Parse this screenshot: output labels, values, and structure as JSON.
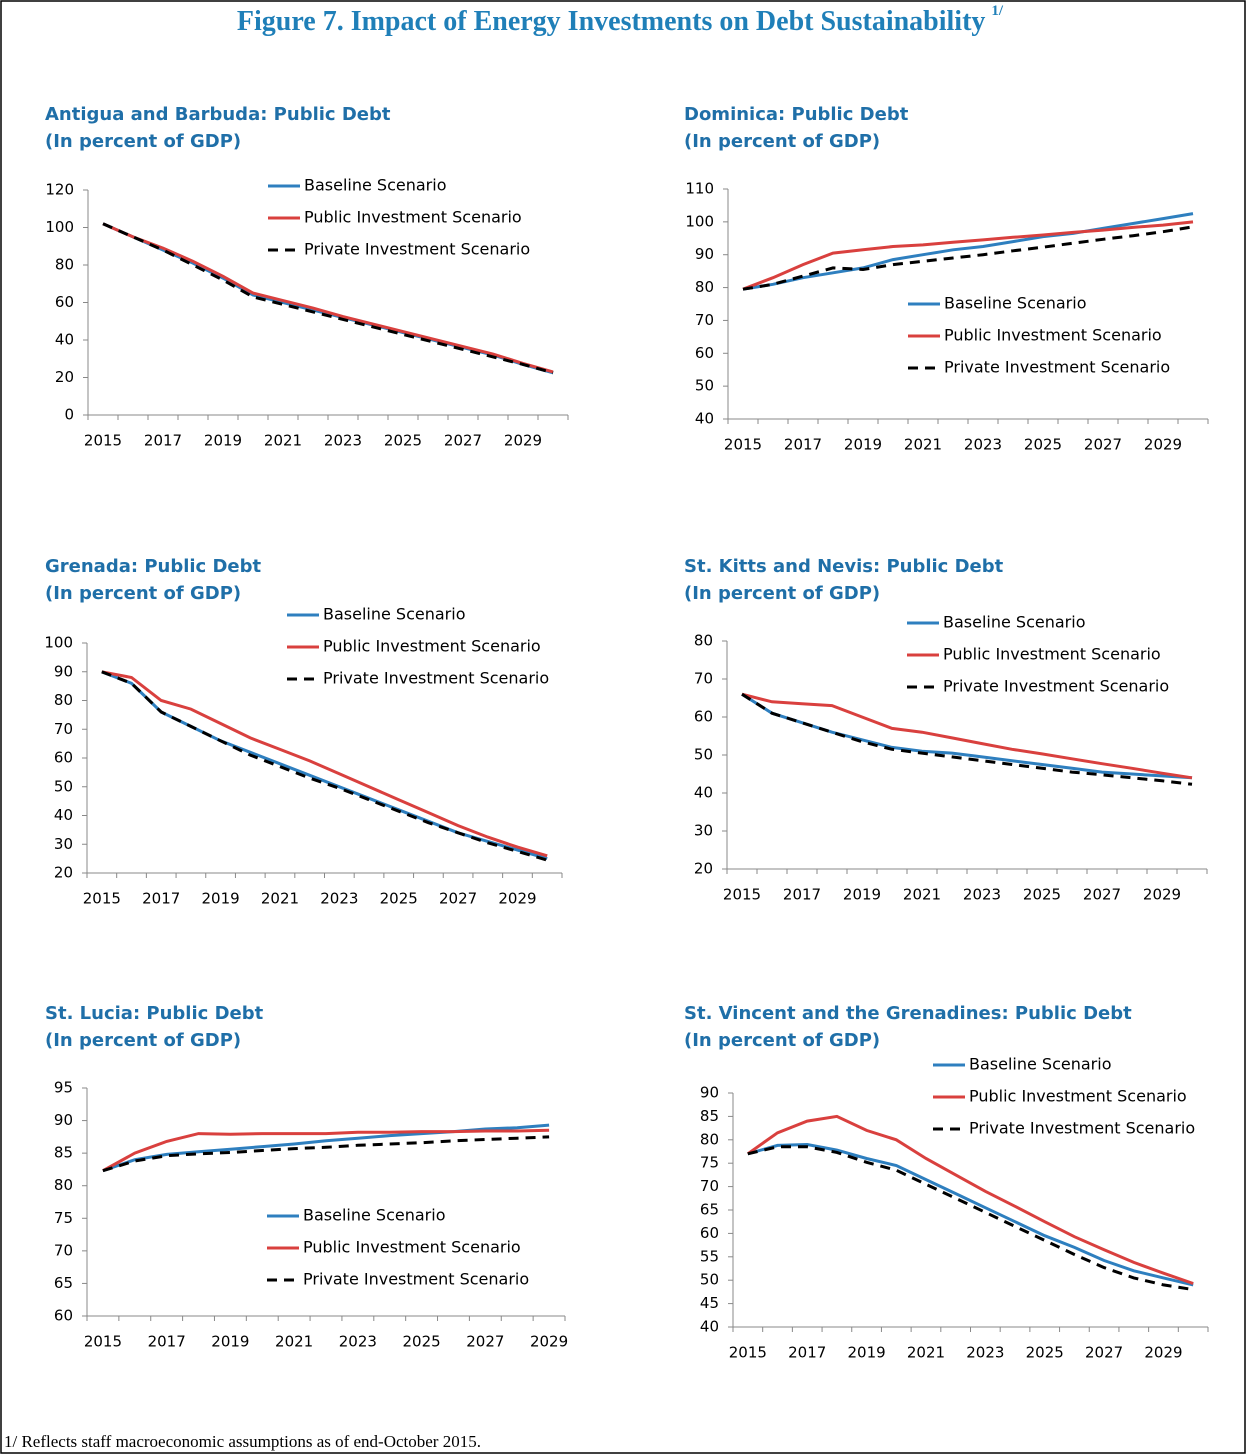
{
  "title": "Figure 7. Impact of Energy Investments on Debt Sustainability",
  "title_note": "1/",
  "footnote": "1/ Reflects staff macroeconomic assumptions as of end-October 2015.",
  "chart_data": [
    {
      "type": "line",
      "title": "Antigua and Barbuda:  Public Debt",
      "subtitle": "(In percent of GDP)",
      "legend": "upper center",
      "categories": [
        "2015",
        null,
        "2017",
        null,
        "2019",
        null,
        "2021",
        null,
        "2023",
        null,
        "2025",
        null,
        "2027",
        null,
        "2029",
        null
      ],
      "series": [
        {
          "name": "Baseline Scenario",
          "color": "#2e7fbf",
          "style": "solid",
          "values": [
            102,
            95,
            88,
            81,
            73,
            64,
            60,
            56,
            52,
            48,
            44,
            40,
            36,
            32,
            27,
            22.5
          ]
        },
        {
          "name": "Public Investment Scenario",
          "color": "#d9403e",
          "style": "solid",
          "values": [
            102,
            95,
            89,
            82,
            74,
            65,
            61,
            57,
            52.5,
            48.5,
            44.5,
            40.5,
            36.5,
            32.5,
            27.5,
            23
          ]
        },
        {
          "name": "Private Investment Scenario",
          "color": "#000000",
          "style": "dashed",
          "values": [
            102,
            95,
            88,
            80,
            72,
            63,
            59,
            55,
            51,
            47,
            43,
            39,
            35,
            31,
            27,
            22.5
          ]
        }
      ],
      "ylim": [
        0,
        120
      ],
      "yticks": [
        0,
        20,
        40,
        60,
        80,
        100,
        120
      ]
    },
    {
      "type": "line",
      "title": "Dominica:  Public Debt",
      "subtitle": "(In percent of GDP)",
      "legend": "lower right",
      "categories": [
        "2015",
        null,
        "2017",
        null,
        "2019",
        null,
        "2021",
        null,
        "2023",
        null,
        "2025",
        null,
        "2027",
        null,
        "2029",
        null
      ],
      "series": [
        {
          "name": "Baseline Scenario",
          "color": "#2e7fbf",
          "style": "solid",
          "values": [
            79.5,
            81,
            83,
            84.5,
            86,
            88.5,
            90,
            91.5,
            92.5,
            94,
            95.5,
            96.5,
            98,
            99.5,
            101,
            102.5
          ]
        },
        {
          "name": "Public Investment Scenario",
          "color": "#d9403e",
          "style": "solid",
          "values": [
            79.5,
            83,
            87,
            90.5,
            91.5,
            92.5,
            93,
            93.8,
            94.5,
            95.3,
            96,
            96.8,
            97.5,
            98.3,
            99,
            100
          ]
        },
        {
          "name": "Private Investment Scenario",
          "color": "#000000",
          "style": "dashed",
          "values": [
            79.5,
            81,
            83.5,
            86,
            85.5,
            87,
            88,
            89,
            90,
            91.2,
            92.3,
            93.5,
            94.7,
            95.8,
            97,
            98.5
          ]
        }
      ],
      "ylim": [
        40,
        110
      ],
      "yticks": [
        40,
        50,
        60,
        70,
        80,
        90,
        100,
        110
      ]
    },
    {
      "type": "line",
      "title": "Grenada:  Public Debt",
      "subtitle": "(In percent of GDP)",
      "legend": "top right",
      "categories": [
        "2015",
        null,
        "2017",
        null,
        "2019",
        null,
        "2021",
        null,
        "2023",
        null,
        "2025",
        null,
        "2027",
        null,
        "2029",
        null
      ],
      "series": [
        {
          "name": "Baseline Scenario",
          "color": "#2e7fbf",
          "style": "solid",
          "values": [
            90,
            86,
            76,
            71,
            66,
            62,
            58,
            54,
            50,
            46,
            42,
            38,
            34,
            31,
            28,
            25
          ]
        },
        {
          "name": "Public Investment Scenario",
          "color": "#d9403e",
          "style": "solid",
          "values": [
            90,
            88,
            80,
            77,
            72,
            67,
            63,
            59,
            54.5,
            50,
            45.5,
            41,
            36.5,
            32.5,
            29,
            26
          ]
        },
        {
          "name": "Private Investment Scenario",
          "color": "#000000",
          "style": "dashed",
          "values": [
            90,
            86,
            76,
            71,
            66,
            61,
            57,
            53,
            49.5,
            45.5,
            41.5,
            37.5,
            34,
            30.5,
            27.5,
            24.5
          ]
        }
      ],
      "ylim": [
        20,
        100
      ],
      "yticks": [
        20,
        30,
        40,
        50,
        60,
        70,
        80,
        90,
        100
      ]
    },
    {
      "type": "line",
      "title": "St. Kitts and Nevis:  Public Debt",
      "subtitle": "(In percent of GDP)",
      "legend": "upper right",
      "categories": [
        "2015",
        null,
        "2017",
        null,
        "2019",
        null,
        "2021",
        null,
        "2023",
        null,
        "2025",
        null,
        "2027",
        null,
        "2029",
        null
      ],
      "series": [
        {
          "name": "Baseline Scenario",
          "color": "#2e7fbf",
          "style": "solid",
          "values": [
            66,
            61,
            58.5,
            56,
            54,
            52,
            51,
            50.5,
            49.5,
            48.5,
            47.5,
            46.5,
            45.5,
            45,
            44.5,
            44
          ]
        },
        {
          "name": "Public Investment Scenario",
          "color": "#d9403e",
          "style": "solid",
          "values": [
            66,
            64,
            63.5,
            63,
            60,
            57,
            56,
            54.5,
            53,
            51.5,
            50.3,
            49,
            47.7,
            46.5,
            45.2,
            44
          ]
        },
        {
          "name": "Private Investment Scenario",
          "color": "#000000",
          "style": "dashed",
          "values": [
            66,
            61,
            58.5,
            56,
            53.5,
            51.5,
            50.5,
            49.5,
            48.5,
            47.5,
            46.5,
            45.5,
            44.8,
            44,
            43.2,
            42.3
          ]
        }
      ],
      "ylim": [
        20,
        80
      ],
      "yticks": [
        20,
        30,
        40,
        50,
        60,
        70,
        80
      ]
    },
    {
      "type": "line",
      "title": "St. Lucia:  Public Debt",
      "subtitle": "(In percent of GDP)",
      "legend": "lower center",
      "categories": [
        "2015",
        null,
        "2017",
        null,
        "2019",
        null,
        "2021",
        null,
        "2023",
        null,
        "2025",
        null,
        "2027",
        null,
        "2029"
      ],
      "series": [
        {
          "name": "Baseline Scenario",
          "color": "#2e7fbf",
          "style": "solid",
          "values": [
            82.3,
            84,
            84.8,
            85.2,
            85.6,
            86,
            86.4,
            86.9,
            87.3,
            87.7,
            88,
            88.3,
            88.7,
            88.9,
            89.3
          ]
        },
        {
          "name": "Public Investment Scenario",
          "color": "#d9403e",
          "style": "solid",
          "values": [
            82.3,
            85,
            86.8,
            88,
            87.9,
            88,
            88,
            88,
            88.2,
            88.2,
            88.3,
            88.3,
            88.4,
            88.4,
            88.5
          ]
        },
        {
          "name": "Private Investment Scenario",
          "color": "#000000",
          "style": "dashed",
          "values": [
            82.3,
            83.8,
            84.6,
            84.9,
            85.1,
            85.4,
            85.7,
            85.9,
            86.2,
            86.4,
            86.6,
            86.9,
            87.1,
            87.3,
            87.5
          ]
        }
      ],
      "ylim": [
        60,
        95
      ],
      "yticks": [
        60,
        65,
        70,
        75,
        80,
        85,
        90,
        95
      ]
    },
    {
      "type": "line",
      "title": "St. Vincent and the Grenadines:  Public Debt",
      "subtitle": "(In percent of GDP)",
      "legend": "top right",
      "categories": [
        "2015",
        null,
        "2017",
        null,
        "2019",
        null,
        "2021",
        null,
        "2023",
        null,
        "2025",
        null,
        "2027",
        null,
        "2029",
        null
      ],
      "series": [
        {
          "name": "Baseline Scenario",
          "color": "#2e7fbf",
          "style": "solid",
          "values": [
            77,
            78.8,
            79,
            77.8,
            76,
            74.5,
            71.5,
            68.5,
            65.5,
            62.5,
            59.5,
            57,
            54.2,
            52,
            50.5,
            49
          ]
        },
        {
          "name": "Public Investment Scenario",
          "color": "#d9403e",
          "style": "solid",
          "values": [
            77,
            81.5,
            84,
            85,
            82,
            80,
            76,
            72.5,
            69,
            65.8,
            62.5,
            59.3,
            56.5,
            53.8,
            51.5,
            49.3
          ]
        },
        {
          "name": "Private Investment Scenario",
          "color": "#000000",
          "style": "dashed",
          "values": [
            77,
            78.5,
            78.5,
            77.3,
            75.2,
            73.5,
            70.5,
            67.5,
            64.5,
            61.5,
            58.5,
            55.5,
            52.7,
            50.5,
            49,
            48
          ]
        }
      ],
      "ylim": [
        40,
        90
      ],
      "yticks": [
        40,
        45,
        50,
        55,
        60,
        65,
        70,
        75,
        80,
        85,
        90
      ]
    }
  ]
}
